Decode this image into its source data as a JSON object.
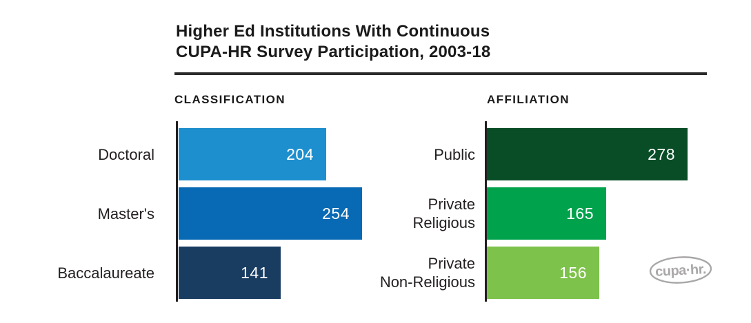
{
  "title": {
    "line1": "Higher Ed Institutions With Continuous",
    "line2": "CUPA-HR Survey Participation, 2003-18"
  },
  "logo": {
    "text": "cupa·hr."
  },
  "colors": {
    "text": "#231F20",
    "divider": "#2B2A2B",
    "axis": "#231F20",
    "value_text": "#FFFFFF",
    "logo_gray": "#A9A7A8"
  },
  "chart_data": [
    {
      "type": "bar",
      "orientation": "horizontal",
      "title": "CLASSIFICATION",
      "categories": [
        "Doctoral",
        "Master's",
        "Baccalaureate"
      ],
      "category_lines": [
        [
          "Doctoral"
        ],
        [
          "Master's"
        ],
        [
          "Baccalaureate"
        ]
      ],
      "values": [
        204,
        254,
        141
      ],
      "colors": [
        "#1E8FCE",
        "#0869B4",
        "#193C61"
      ],
      "value_labels_position": "inside-right",
      "xlim": [
        0,
        278
      ],
      "grid": false,
      "legend": false
    },
    {
      "type": "bar",
      "orientation": "horizontal",
      "title": "AFFILIATION",
      "categories": [
        "Public",
        "Private Religious",
        "Private Non-Religious"
      ],
      "category_lines": [
        [
          "Public"
        ],
        [
          "Private",
          "Religious"
        ],
        [
          "Private",
          "Non-Religious"
        ]
      ],
      "values": [
        278,
        165,
        156
      ],
      "colors": [
        "#094D26",
        "#00A24C",
        "#7DC24A"
      ],
      "value_labels_position": "inside-right",
      "xlim": [
        0,
        278
      ],
      "grid": false,
      "legend": false
    }
  ]
}
